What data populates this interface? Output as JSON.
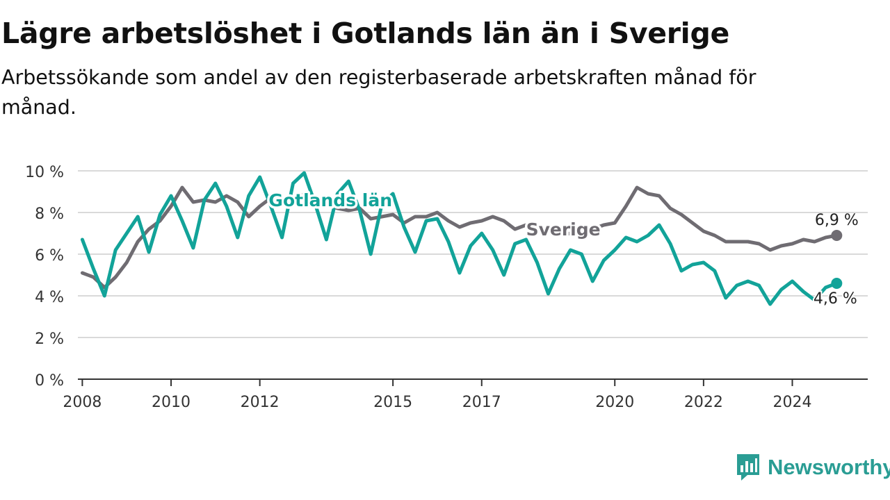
{
  "title": "Lägre arbetslöshet i Gotlands län än i Sverige",
  "subtitle": "Arbetssökande som andel av den registerbaserade arbetskraften månad för månad.",
  "brand": {
    "name": "Newsworthy",
    "logo_icon": "newsworthy-chart-logo-icon",
    "color": "#2a9d94"
  },
  "chart_data": {
    "type": "line",
    "title": "Lägre arbetslöshet i Gotlands län än i Sverige",
    "subtitle": "Arbetssökande som andel av den registerbaserade arbetskraften månad för månad.",
    "xlabel": "",
    "ylabel": "",
    "xlim": [
      2007.9,
      2025.7
    ],
    "ylim": [
      0,
      10
    ],
    "grid": true,
    "y_ticks": [
      0,
      2,
      4,
      6,
      8,
      10
    ],
    "y_tick_labels": [
      "0 %",
      "2 %",
      "4 %",
      "6 %",
      "8 %",
      "10 %"
    ],
    "x_ticks": [
      2008,
      2010,
      2012,
      2015,
      2017,
      2020,
      2022,
      2024
    ],
    "x_tick_labels": [
      "2008",
      "2010",
      "2012",
      "2015",
      "2017",
      "2020",
      "2022",
      "2024"
    ],
    "series": [
      {
        "name": "Sverige",
        "color": "#6f6c72",
        "end_label": "6,9 %",
        "points": [
          [
            2008.0,
            5.1
          ],
          [
            2008.25,
            4.9
          ],
          [
            2008.5,
            4.4
          ],
          [
            2008.75,
            4.9
          ],
          [
            2009.0,
            5.6
          ],
          [
            2009.25,
            6.6
          ],
          [
            2009.5,
            7.2
          ],
          [
            2009.75,
            7.6
          ],
          [
            2010.0,
            8.3
          ],
          [
            2010.25,
            9.2
          ],
          [
            2010.5,
            8.5
          ],
          [
            2010.75,
            8.6
          ],
          [
            2011.0,
            8.5
          ],
          [
            2011.25,
            8.8
          ],
          [
            2011.5,
            8.5
          ],
          [
            2011.75,
            7.8
          ],
          [
            2012.0,
            8.3
          ],
          [
            2012.25,
            8.7
          ],
          [
            2012.5,
            8.7
          ],
          [
            2012.75,
            8.5
          ],
          [
            2013.0,
            8.9
          ],
          [
            2013.25,
            8.7
          ],
          [
            2013.5,
            8.4
          ],
          [
            2013.75,
            8.2
          ],
          [
            2014.0,
            8.1
          ],
          [
            2014.25,
            8.2
          ],
          [
            2014.5,
            7.7
          ],
          [
            2014.75,
            7.8
          ],
          [
            2015.0,
            7.9
          ],
          [
            2015.25,
            7.5
          ],
          [
            2015.5,
            7.8
          ],
          [
            2015.75,
            7.8
          ],
          [
            2016.0,
            8.0
          ],
          [
            2016.25,
            7.6
          ],
          [
            2016.5,
            7.3
          ],
          [
            2016.75,
            7.5
          ],
          [
            2017.0,
            7.6
          ],
          [
            2017.25,
            7.8
          ],
          [
            2017.5,
            7.6
          ],
          [
            2017.75,
            7.2
          ],
          [
            2018.0,
            7.4
          ],
          [
            2018.25,
            7.4
          ],
          [
            2018.5,
            7.2
          ],
          [
            2018.75,
            6.9
          ],
          [
            2019.0,
            7.0
          ],
          [
            2019.25,
            7.1
          ],
          [
            2019.5,
            7.2
          ],
          [
            2019.75,
            7.4
          ],
          [
            2020.0,
            7.5
          ],
          [
            2020.25,
            8.3
          ],
          [
            2020.5,
            9.2
          ],
          [
            2020.75,
            8.9
          ],
          [
            2021.0,
            8.8
          ],
          [
            2021.25,
            8.2
          ],
          [
            2021.5,
            7.9
          ],
          [
            2021.75,
            7.5
          ],
          [
            2022.0,
            7.1
          ],
          [
            2022.25,
            6.9
          ],
          [
            2022.5,
            6.6
          ],
          [
            2022.75,
            6.6
          ],
          [
            2023.0,
            6.6
          ],
          [
            2023.25,
            6.5
          ],
          [
            2023.5,
            6.2
          ],
          [
            2023.75,
            6.4
          ],
          [
            2024.0,
            6.5
          ],
          [
            2024.25,
            6.7
          ],
          [
            2024.5,
            6.6
          ],
          [
            2024.75,
            6.8
          ],
          [
            2025.0,
            6.9
          ]
        ]
      },
      {
        "name": "Gotlands län",
        "color": "#12a399",
        "end_label": "4,6 %",
        "points": [
          [
            2008.0,
            6.7
          ],
          [
            2008.25,
            5.3
          ],
          [
            2008.5,
            4.0
          ],
          [
            2008.75,
            6.2
          ],
          [
            2009.0,
            7.0
          ],
          [
            2009.25,
            7.8
          ],
          [
            2009.5,
            6.1
          ],
          [
            2009.75,
            7.9
          ],
          [
            2010.0,
            8.8
          ],
          [
            2010.25,
            7.6
          ],
          [
            2010.5,
            6.3
          ],
          [
            2010.75,
            8.6
          ],
          [
            2011.0,
            9.4
          ],
          [
            2011.25,
            8.3
          ],
          [
            2011.5,
            6.8
          ],
          [
            2011.75,
            8.8
          ],
          [
            2012.0,
            9.7
          ],
          [
            2012.25,
            8.3
          ],
          [
            2012.5,
            6.8
          ],
          [
            2012.75,
            9.4
          ],
          [
            2013.0,
            9.9
          ],
          [
            2013.25,
            8.4
          ],
          [
            2013.5,
            6.7
          ],
          [
            2013.75,
            8.9
          ],
          [
            2014.0,
            9.5
          ],
          [
            2014.25,
            8.1
          ],
          [
            2014.5,
            6.0
          ],
          [
            2014.75,
            8.4
          ],
          [
            2015.0,
            8.9
          ],
          [
            2015.25,
            7.3
          ],
          [
            2015.5,
            6.1
          ],
          [
            2015.75,
            7.6
          ],
          [
            2016.0,
            7.7
          ],
          [
            2016.25,
            6.6
          ],
          [
            2016.5,
            5.1
          ],
          [
            2016.75,
            6.4
          ],
          [
            2017.0,
            7.0
          ],
          [
            2017.25,
            6.2
          ],
          [
            2017.5,
            5.0
          ],
          [
            2017.75,
            6.5
          ],
          [
            2018.0,
            6.7
          ],
          [
            2018.25,
            5.6
          ],
          [
            2018.5,
            4.1
          ],
          [
            2018.75,
            5.3
          ],
          [
            2019.0,
            6.2
          ],
          [
            2019.25,
            6.0
          ],
          [
            2019.5,
            4.7
          ],
          [
            2019.75,
            5.7
          ],
          [
            2020.0,
            6.2
          ],
          [
            2020.25,
            6.8
          ],
          [
            2020.5,
            6.6
          ],
          [
            2020.75,
            6.9
          ],
          [
            2021.0,
            7.4
          ],
          [
            2021.25,
            6.5
          ],
          [
            2021.5,
            5.2
          ],
          [
            2021.75,
            5.5
          ],
          [
            2022.0,
            5.6
          ],
          [
            2022.25,
            5.2
          ],
          [
            2022.5,
            3.9
          ],
          [
            2022.75,
            4.5
          ],
          [
            2023.0,
            4.7
          ],
          [
            2023.25,
            4.5
          ],
          [
            2023.5,
            3.6
          ],
          [
            2023.75,
            4.3
          ],
          [
            2024.0,
            4.7
          ],
          [
            2024.25,
            4.2
          ],
          [
            2024.5,
            3.8
          ],
          [
            2024.75,
            4.4
          ],
          [
            2025.0,
            4.6
          ]
        ]
      }
    ],
    "annotations": [
      {
        "text": "Gotlands län",
        "series": "Gotlands län",
        "x": 2012.2,
        "y": 8.3
      },
      {
        "text": "Sverige",
        "series": "Sverige",
        "x": 2018.0,
        "y": 6.9
      }
    ]
  }
}
